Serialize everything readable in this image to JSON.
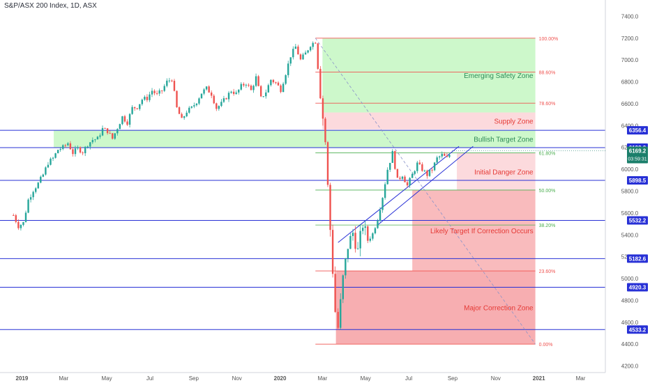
{
  "header": {
    "title": "S&P/ASX 200 Index, 1D, ASX"
  },
  "colors": {
    "blue_line": "#2730d6",
    "fib_line": "#ef5350",
    "fib_mid_line": "#4caf50",
    "green_zone": "#c8f7c5",
    "pink_zone": "#fcd6d9",
    "red_zone": "#f8b4b6",
    "deep_red_zone": "#f6a5a8",
    "candle_up": "#26a69a",
    "candle_down": "#ef5350",
    "axis_text": "#555555",
    "current_badge": "#1b7f6b"
  },
  "chart_data": {
    "type": "candlestick",
    "x_axis_labels": [
      "2019",
      "Mar",
      "May",
      "Jul",
      "Sep",
      "Nov",
      "2020",
      "Mar",
      "May",
      "Jul",
      "Sep",
      "Nov",
      "2021",
      "Mar"
    ],
    "y_axis_ticks": [
      4200,
      4400,
      4600,
      4800,
      5000,
      5200,
      5400,
      5600,
      5800,
      6000,
      6200,
      6400,
      6600,
      6800,
      7000,
      7200,
      7400
    ],
    "ylim": [
      4140,
      7460
    ],
    "y_tick_labels": [
      "4200.0",
      "4400.0",
      "4600.0",
      "4800.0",
      "5000.0",
      "5200.0",
      "5400.0",
      "5600.0",
      "5800.0",
      "6000.0",
      "6200.0",
      "6400.0",
      "6600.0",
      "6800.0",
      "7000.0",
      "7200.0",
      "7400.0"
    ],
    "horizontal_levels": [
      {
        "value": 6356.4,
        "label": "6356.4"
      },
      {
        "value": 6198.2,
        "label": "6198.2"
      },
      {
        "value": 5898.5,
        "label": "5898.5"
      },
      {
        "value": 5532.2,
        "label": "5532.2"
      },
      {
        "value": 5182.6,
        "label": "5182.6"
      },
      {
        "value": 4920.3,
        "label": "4920.3"
      },
      {
        "value": 4533.2,
        "label": "4533.2"
      }
    ],
    "current_price": {
      "value": 6169.2,
      "label": "6169.2",
      "countdown": "03:59:31"
    },
    "fibonacci": [
      {
        "ratio": "100.00%",
        "value": 7200
      },
      {
        "ratio": "88.60%",
        "value": 6890
      },
      {
        "ratio": "78.60%",
        "value": 6605
      },
      {
        "ratio": "61.80%",
        "value": 6150
      },
      {
        "ratio": "50.00%",
        "value": 5810
      },
      {
        "ratio": "38.20%",
        "value": 5490
      },
      {
        "ratio": "23.60%",
        "value": 5070
      },
      {
        "ratio": "0.00%",
        "value": 4400
      }
    ],
    "zones": [
      {
        "label": "Emerging Safety Zone",
        "y_top": 7200,
        "y_bottom": 6520,
        "x_start": "2020-03-01",
        "x_end": "2020-12-27",
        "kind": "green"
      },
      {
        "label": "Supply Zone",
        "y_top": 6520,
        "y_bottom": 6365,
        "x_start": "2020-03-01",
        "x_end": "2020-12-27",
        "kind": "pink"
      },
      {
        "label": "Bullish Target Zone",
        "y_top": 6356.4,
        "y_bottom": 6198.2,
        "x_start": "2019-02-15",
        "x_end": "2020-12-27",
        "kind": "green"
      },
      {
        "label": "Initial Danger Zone",
        "y_top": 6150,
        "y_bottom": 5810,
        "x_start": "2020-09-07",
        "x_end": "2020-12-27",
        "kind": "pink"
      },
      {
        "label": "Likely Target If Correction Occurs",
        "y_top": 5810,
        "y_bottom": 5070,
        "x_start": "2020-07-06",
        "x_end": "2020-12-27",
        "kind": "red"
      },
      {
        "label": "Major Correction Zone",
        "y_top": 5070,
        "y_bottom": 4400,
        "x_start": "2020-03-20",
        "x_end": "2020-12-27",
        "kind": "deepred"
      }
    ],
    "trendlines": [
      {
        "from": [
          "2020-03-23",
          5330
        ],
        "to": [
          "2020-09-10",
          6210
        ]
      },
      {
        "from": [
          "2020-05-18",
          5490
        ],
        "to": [
          "2020-09-30",
          6210
        ]
      }
    ],
    "diagonal": {
      "from": [
        "2020-02-20",
        7200
      ],
      "to": [
        "2020-12-27",
        4400
      ]
    },
    "price_path": [
      [
        "2018-12-20",
        5580
      ],
      [
        "2018-12-27",
        5480
      ],
      [
        "2019-01-03",
        5510
      ],
      [
        "2019-01-10",
        5720
      ],
      [
        "2019-01-17",
        5810
      ],
      [
        "2019-01-24",
        5870
      ],
      [
        "2019-01-31",
        5950
      ],
      [
        "2019-02-07",
        6060
      ],
      [
        "2019-02-14",
        6100
      ],
      [
        "2019-02-21",
        6180
      ],
      [
        "2019-02-28",
        6200
      ],
      [
        "2019-03-07",
        6240
      ],
      [
        "2019-03-14",
        6150
      ],
      [
        "2019-03-21",
        6190
      ],
      [
        "2019-03-28",
        6160
      ],
      [
        "2019-04-04",
        6230
      ],
      [
        "2019-04-11",
        6270
      ],
      [
        "2019-04-18",
        6280
      ],
      [
        "2019-04-25",
        6370
      ],
      [
        "2019-05-02",
        6350
      ],
      [
        "2019-05-09",
        6280
      ],
      [
        "2019-05-16",
        6380
      ],
      [
        "2019-05-23",
        6480
      ],
      [
        "2019-05-30",
        6430
      ],
      [
        "2019-06-06",
        6560
      ],
      [
        "2019-06-13",
        6570
      ],
      [
        "2019-06-20",
        6640
      ],
      [
        "2019-06-27",
        6650
      ],
      [
        "2019-07-04",
        6720
      ],
      [
        "2019-07-11",
        6680
      ],
      [
        "2019-07-18",
        6720
      ],
      [
        "2019-07-25",
        6800
      ],
      [
        "2019-08-01",
        6830
      ],
      [
        "2019-08-08",
        6560
      ],
      [
        "2019-08-15",
        6450
      ],
      [
        "2019-08-22",
        6530
      ],
      [
        "2019-08-29",
        6560
      ],
      [
        "2019-09-05",
        6620
      ],
      [
        "2019-09-12",
        6700
      ],
      [
        "2019-09-19",
        6740
      ],
      [
        "2019-09-26",
        6690
      ],
      [
        "2019-10-03",
        6560
      ],
      [
        "2019-10-10",
        6600
      ],
      [
        "2019-10-17",
        6660
      ],
      [
        "2019-10-24",
        6720
      ],
      [
        "2019-10-31",
        6690
      ],
      [
        "2019-11-07",
        6760
      ],
      [
        "2019-11-14",
        6790
      ],
      [
        "2019-11-21",
        6720
      ],
      [
        "2019-11-28",
        6840
      ],
      [
        "2019-12-05",
        6650
      ],
      [
        "2019-12-12",
        6710
      ],
      [
        "2019-12-19",
        6820
      ],
      [
        "2019-12-26",
        6790
      ],
      [
        "2020-01-02",
        6730
      ],
      [
        "2020-01-09",
        6880
      ],
      [
        "2020-01-16",
        7040
      ],
      [
        "2020-01-23",
        7120
      ],
      [
        "2020-01-30",
        7000
      ],
      [
        "2020-02-06",
        7060
      ],
      [
        "2020-02-13",
        7140
      ],
      [
        "2020-02-20",
        7170
      ],
      [
        "2020-02-27",
        6700
      ],
      [
        "2020-03-05",
        6250
      ],
      [
        "2020-03-12",
        5450
      ],
      [
        "2020-03-19",
        4700
      ],
      [
        "2020-03-23",
        4550
      ],
      [
        "2020-03-30",
        5000
      ],
      [
        "2020-04-06",
        5300
      ],
      [
        "2020-04-13",
        5420
      ],
      [
        "2020-04-20",
        5250
      ],
      [
        "2020-04-27",
        5500
      ],
      [
        "2020-05-04",
        5350
      ],
      [
        "2020-05-11",
        5410
      ],
      [
        "2020-05-18",
        5550
      ],
      [
        "2020-05-25",
        5750
      ],
      [
        "2020-06-01",
        6000
      ],
      [
        "2020-06-08",
        6150
      ],
      [
        "2020-06-15",
        5900
      ],
      [
        "2020-06-22",
        5950
      ],
      [
        "2020-06-29",
        5850
      ],
      [
        "2020-07-06",
        5950
      ],
      [
        "2020-07-13",
        6050
      ],
      [
        "2020-07-20",
        6000
      ],
      [
        "2020-07-27",
        5950
      ],
      [
        "2020-08-03",
        6000
      ],
      [
        "2020-08-10",
        6100
      ],
      [
        "2020-08-17",
        6130
      ],
      [
        "2020-08-24",
        6100
      ],
      [
        "2020-08-31",
        6169
      ]
    ]
  }
}
